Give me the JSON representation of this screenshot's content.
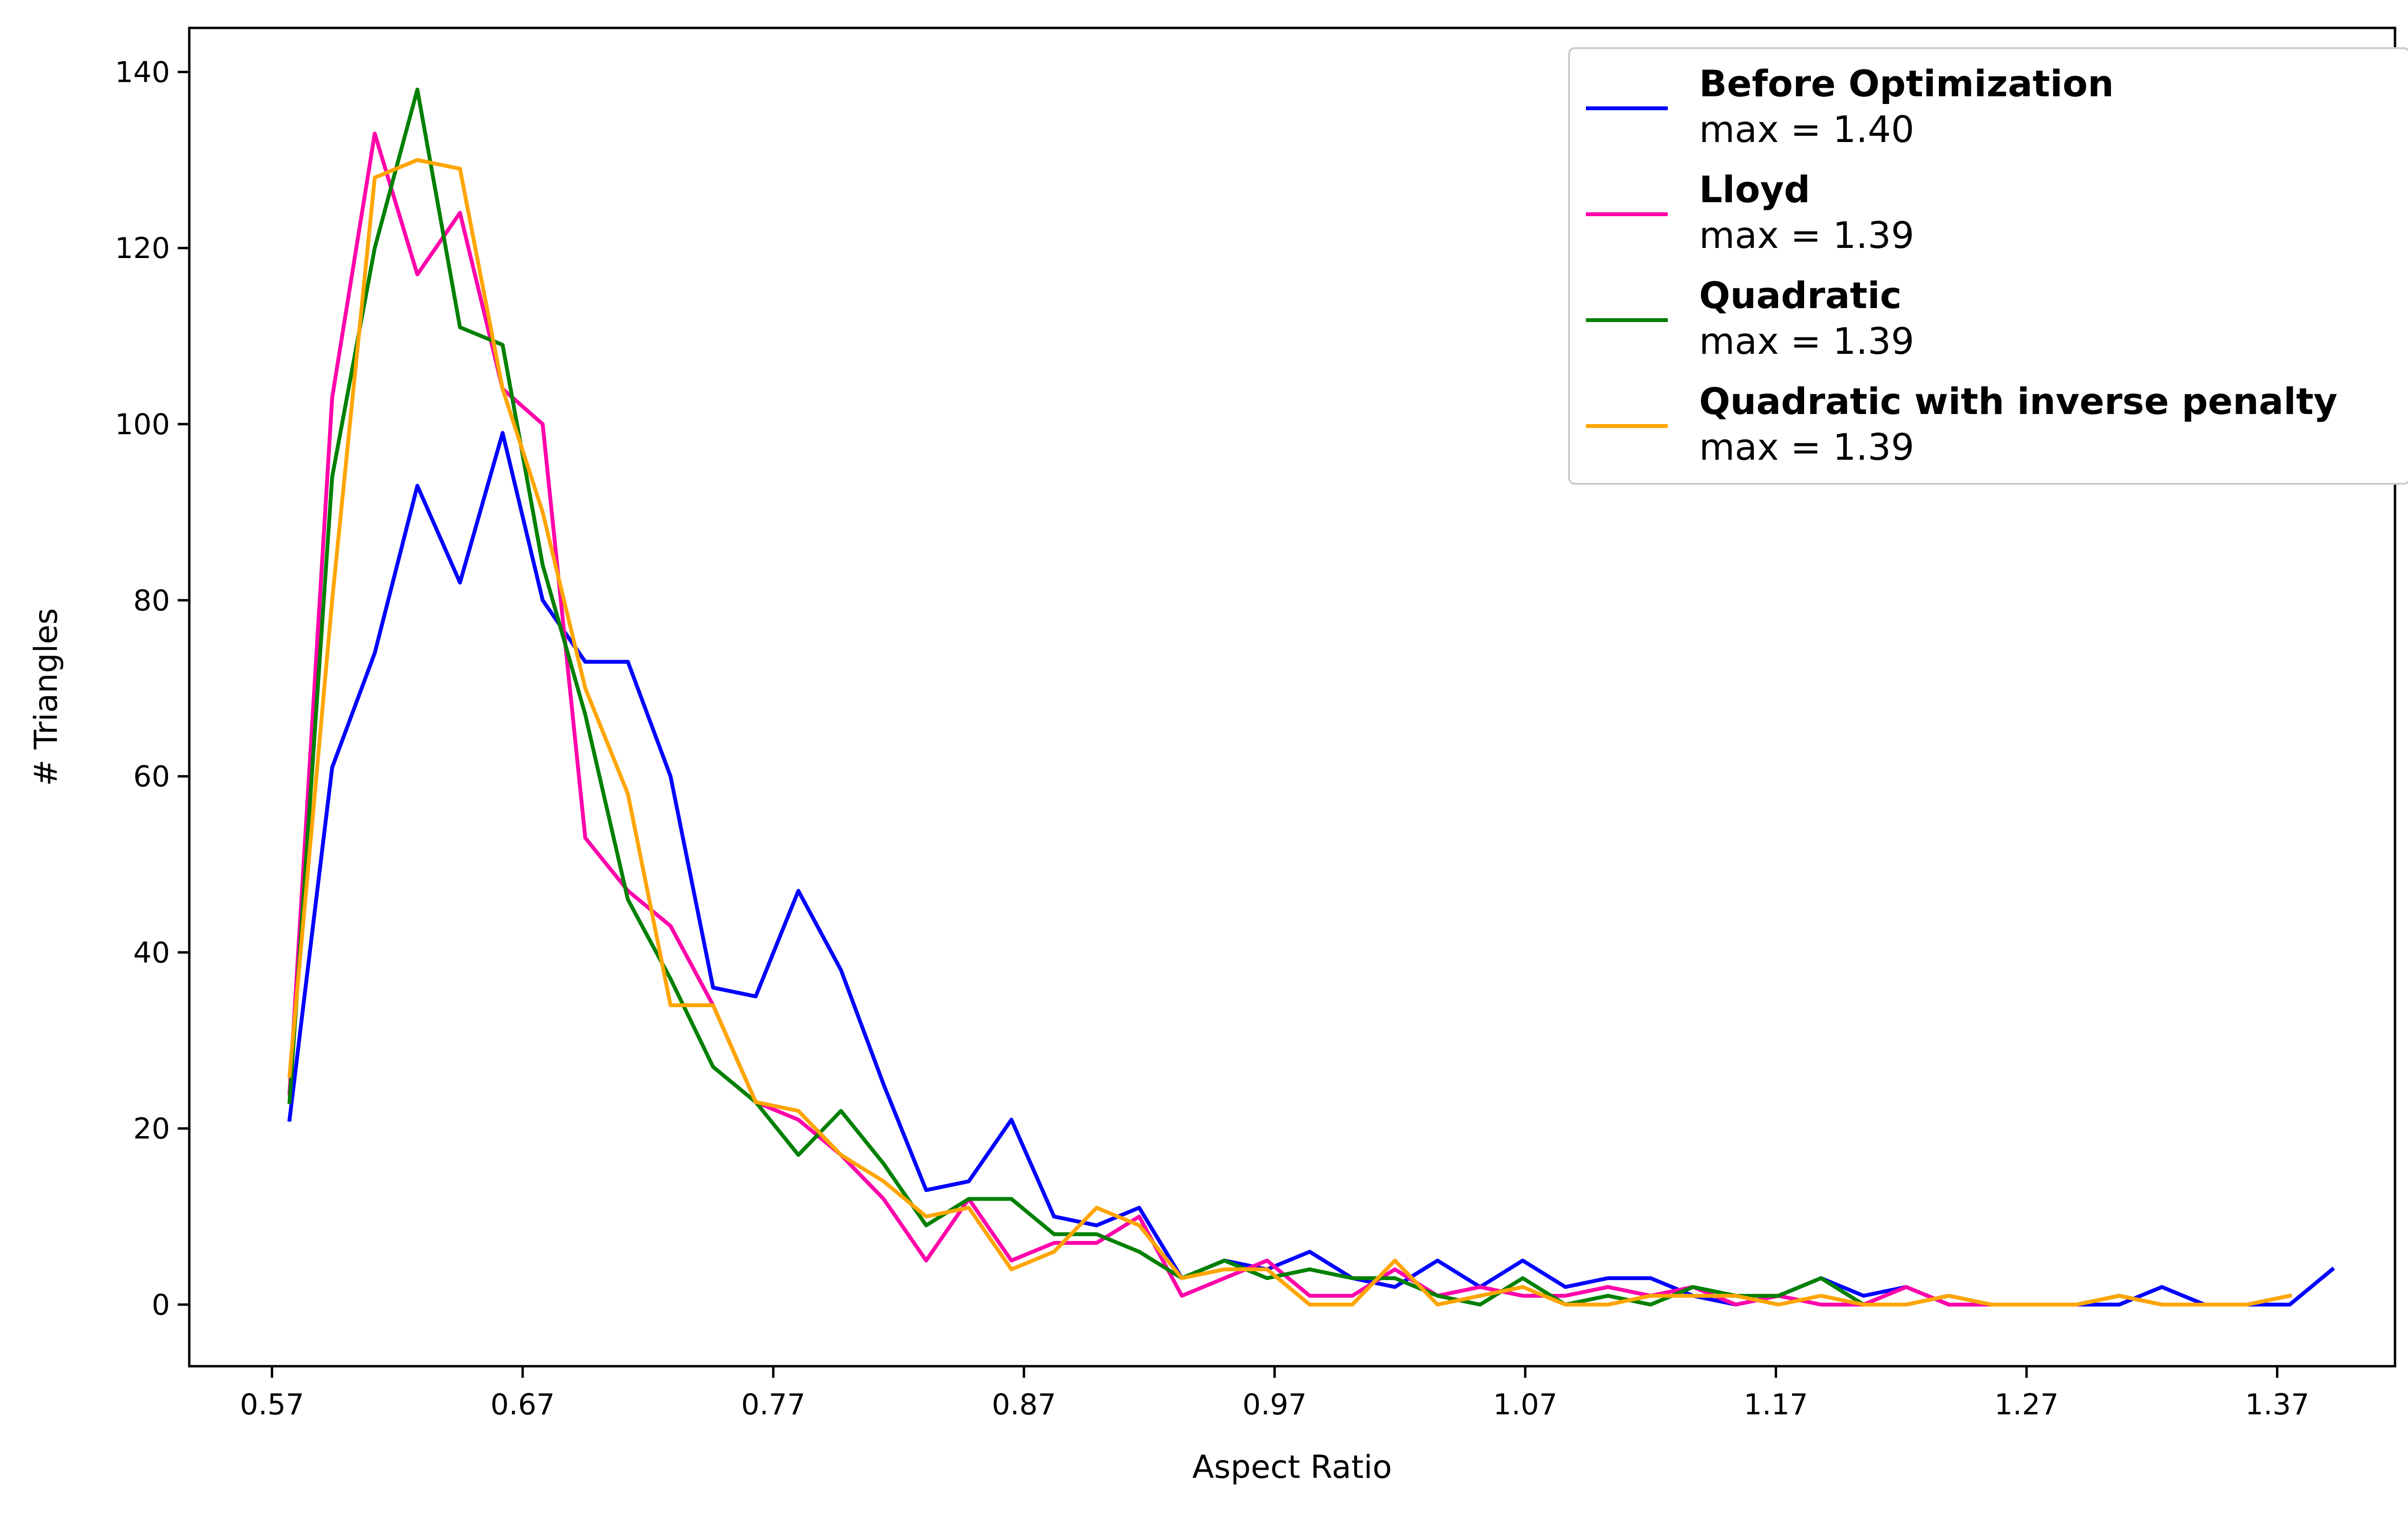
{
  "chart_data": {
    "type": "line",
    "title": "",
    "xlabel": "Aspect Ratio",
    "ylabel": "# Triangles",
    "xlim": [
      0.537,
      1.417
    ],
    "ylim": [
      -7,
      145
    ],
    "xticks": [
      0.57,
      0.67,
      0.77,
      0.87,
      0.97,
      1.07,
      1.17,
      1.27,
      1.37
    ],
    "xtick_labels": [
      "0.57",
      "0.67",
      "0.77",
      "0.87",
      "0.97",
      "1.07",
      "1.17",
      "1.27",
      "1.37"
    ],
    "yticks": [
      0,
      20,
      40,
      60,
      80,
      100,
      120,
      140
    ],
    "ytick_labels": [
      "0",
      "20",
      "40",
      "60",
      "80",
      "100",
      "120",
      "140"
    ],
    "grid": false,
    "legend_position": "top-right",
    "series": [
      {
        "name": "Before Optimization",
        "max_label": "max = 1.40",
        "color": "#0000ff",
        "x": [
          0.577,
          0.594,
          0.611,
          0.628,
          0.645,
          0.662,
          0.678,
          0.695,
          0.712,
          0.729,
          0.746,
          0.763,
          0.78,
          0.797,
          0.814,
          0.831,
          0.848,
          0.865,
          0.882,
          0.899,
          0.916,
          0.933,
          0.95,
          0.967,
          0.984,
          1.001,
          1.018,
          1.035,
          1.052,
          1.069,
          1.086,
          1.103,
          1.12,
          1.137,
          1.154,
          1.171,
          1.188,
          1.205,
          1.222,
          1.239,
          1.256,
          1.273,
          1.29,
          1.307,
          1.324,
          1.341,
          1.358,
          1.375,
          1.392
        ],
        "y": [
          21,
          61,
          74,
          93,
          82,
          99,
          80,
          73,
          73,
          60,
          36,
          35,
          47,
          38,
          25,
          13,
          14,
          21,
          10,
          9,
          11,
          3,
          5,
          4,
          6,
          3,
          2,
          5,
          2,
          5,
          2,
          3,
          3,
          1,
          0,
          1,
          3,
          1,
          2,
          0,
          0,
          0,
          0,
          0,
          2,
          0,
          0,
          0,
          4
        ]
      },
      {
        "name": "Lloyd",
        "max_label": "max = 1.39",
        "color": "#ff00aa",
        "x": [
          0.577,
          0.594,
          0.611,
          0.628,
          0.645,
          0.662,
          0.678,
          0.695,
          0.712,
          0.729,
          0.746,
          0.763,
          0.78,
          0.797,
          0.814,
          0.831,
          0.848,
          0.865,
          0.882,
          0.899,
          0.916,
          0.933,
          0.95,
          0.967,
          0.984,
          1.001,
          1.018,
          1.035,
          1.052,
          1.069,
          1.086,
          1.103,
          1.12,
          1.137,
          1.154,
          1.171,
          1.188,
          1.205,
          1.222,
          1.239,
          1.256,
          1.273,
          1.29,
          1.307,
          1.324,
          1.341,
          1.358,
          1.375
        ],
        "y": [
          24,
          103,
          133,
          117,
          124,
          104,
          100,
          53,
          47,
          43,
          34,
          23,
          21,
          17,
          12,
          5,
          12,
          5,
          7,
          7,
          10,
          1,
          3,
          5,
          1,
          1,
          4,
          1,
          2,
          1,
          1,
          2,
          1,
          2,
          0,
          1,
          0,
          0,
          2,
          0,
          0,
          0,
          0,
          1,
          0,
          0,
          0,
          1
        ]
      },
      {
        "name": "Quadratic",
        "max_label": "max = 1.39",
        "color": "#008000",
        "x": [
          0.577,
          0.594,
          0.611,
          0.628,
          0.645,
          0.662,
          0.678,
          0.695,
          0.712,
          0.729,
          0.746,
          0.763,
          0.78,
          0.797,
          0.814,
          0.831,
          0.848,
          0.865,
          0.882,
          0.899,
          0.916,
          0.933,
          0.95,
          0.967,
          0.984,
          1.001,
          1.018,
          1.035,
          1.052,
          1.069,
          1.086,
          1.103,
          1.12,
          1.137,
          1.154,
          1.171,
          1.188,
          1.205,
          1.222,
          1.239,
          1.256,
          1.273,
          1.29,
          1.307,
          1.324,
          1.341,
          1.358,
          1.375
        ],
        "y": [
          23,
          94,
          120,
          138,
          111,
          109,
          84,
          67,
          46,
          37,
          27,
          23,
          17,
          22,
          16,
          9,
          12,
          12,
          8,
          8,
          6,
          3,
          5,
          3,
          4,
          3,
          3,
          1,
          0,
          3,
          0,
          1,
          0,
          2,
          1,
          1,
          3,
          0,
          0,
          1,
          0,
          0,
          0,
          1,
          0,
          0,
          0,
          1
        ]
      },
      {
        "name": "Quadratic with inverse penalty",
        "max_label": "max = 1.39",
        "color": "#ffa500",
        "x": [
          0.577,
          0.594,
          0.611,
          0.628,
          0.645,
          0.662,
          0.678,
          0.695,
          0.712,
          0.729,
          0.746,
          0.763,
          0.78,
          0.797,
          0.814,
          0.831,
          0.848,
          0.865,
          0.882,
          0.899,
          0.916,
          0.933,
          0.95,
          0.967,
          0.984,
          1.001,
          1.018,
          1.035,
          1.052,
          1.069,
          1.086,
          1.103,
          1.12,
          1.137,
          1.154,
          1.171,
          1.188,
          1.205,
          1.222,
          1.239,
          1.256,
          1.273,
          1.29,
          1.307,
          1.324,
          1.341,
          1.358,
          1.375
        ],
        "y": [
          26,
          80,
          128,
          130,
          129,
          104,
          90,
          70,
          58,
          34,
          34,
          23,
          22,
          17,
          14,
          10,
          11,
          4,
          6,
          11,
          9,
          3,
          4,
          4,
          0,
          0,
          5,
          0,
          1,
          2,
          0,
          0,
          1,
          1,
          1,
          0,
          1,
          0,
          0,
          1,
          0,
          0,
          0,
          1,
          0,
          0,
          0,
          1
        ]
      }
    ]
  }
}
